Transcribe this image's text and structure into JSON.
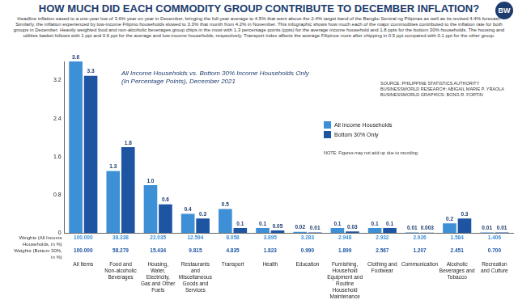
{
  "chart_data": {
    "type": "bar",
    "title": "HOW MUCH DID EACH COMMODITY GROUP CONTRIBUTE TO DECEMBER INFLATION?",
    "subtitle": "All Income Households vs. Bottom 30% Income Households Only (In Percentage Points), December 2021",
    "annotations": {
      "description": "Headline inflation eased to a one-year low of 3.6% year on year in December, bringing the full-year average to 4.5% that went above the 2-4% target band of the Bangko Sentral ng Pilipinas as well as its revised 4.4% forecast. Similarly, the inflation experienced by low-income Filipino households slowed to 3.3% that month from 4.2% in November. This infographic shows how much each of the major commodities contributed to the inflation rate for both groups in December. Heavily weighted food and non-alcoholic beverages group chips in the most with 1.3 percentage points (ppts) for the average income household and 1.8 ppts for the bottom 30% households. The housing and utilities basket follows with 1 ppt and 0.6 ppt for the average and low-income households, respectively. Transport index affects the average Filipinos more after chipping in 0.5 ppt compared with 0.1 ppt for the other group.",
      "note": "NOTE: Figures may not add up due to rounding.",
      "source": "SOURCE: PHILIPPINE STATISTICS AUTHORITY",
      "research": "BUSINESSWORLD RESEARCH: ABIGAIL MARIE P. YRAOLA",
      "graphics": "BUSINESSWORLD GRAPHICS: BONG R. FORTIN",
      "logo": "BW"
    },
    "categories": [
      "All Items",
      "Food and Non-alcoholic Beverages",
      "Housing, Water, Electricity, Gas and Other Fuels",
      "Restaurants and Miscellaneous Goods and Services",
      "Transport",
      "Health",
      "Education",
      "Furnishing, Household Equipment and Routine Household Maintenance",
      "Clothing and Footwear",
      "Communication",
      "Alcoholic Beverages and Tobacco",
      "Recreation and Culture"
    ],
    "series": [
      {
        "name": "All Income Households",
        "color": "#3d8fd6",
        "values": [
          3.6,
          1.3,
          1.0,
          0.4,
          0.5,
          0.1,
          0.02,
          0.1,
          0.1,
          0.01,
          0.2,
          0.01
        ],
        "value_labels": [
          "3.6",
          "1.3",
          "1.0",
          "0.4",
          "0.5",
          "0.1",
          "0.02",
          "0.1",
          "0.1",
          "0.01",
          "0.2",
          "0.01"
        ]
      },
      {
        "name": "Bottom 30% Only",
        "color": "#1e55a3",
        "values": [
          3.3,
          1.8,
          0.6,
          0.3,
          0.1,
          0.05,
          0.01,
          0.03,
          0.1,
          0.003,
          0.3,
          0.01
        ],
        "value_labels": [
          "3.3",
          "1.8",
          "0.6",
          "0.3",
          "0.1",
          "0.05",
          "0.01",
          "0.03",
          "0.1",
          "0.003",
          "0.3",
          "0.01"
        ]
      }
    ],
    "weights": [
      {
        "name": "Weights (All Income Households, in %)",
        "values": [
          100.0,
          38.338,
          22.035,
          12.594,
          8.058,
          3.895,
          3.283,
          2.948,
          2.932,
          2.926,
          1.584,
          1.406
        ],
        "value_labels": [
          "100.000",
          "38.338",
          "22.035",
          "12.594",
          "8.058",
          "3.895",
          "3.283",
          "2.948",
          "2.932",
          "2.926",
          "1.584",
          "1.406"
        ]
      },
      {
        "name": "Weights (Bottom 30%, in %)",
        "values": [
          100.0,
          58.279,
          15.434,
          9.815,
          4.835,
          1.823,
          0.99,
          1.899,
          2.567,
          1.207,
          2.451,
          0.7
        ],
        "value_labels": [
          "100.000",
          "58.279",
          "15.434",
          "9.815",
          "4.835",
          "1.823",
          "0.990",
          "1.899",
          "2.567",
          "1.207",
          "2.451",
          "0.700"
        ]
      }
    ],
    "ylim": [
      0,
      3.6
    ],
    "yticks": [
      0,
      0.8,
      1.6,
      2.4,
      3.2
    ],
    "grid": false,
    "legend": "right",
    "data_labels": true
  }
}
